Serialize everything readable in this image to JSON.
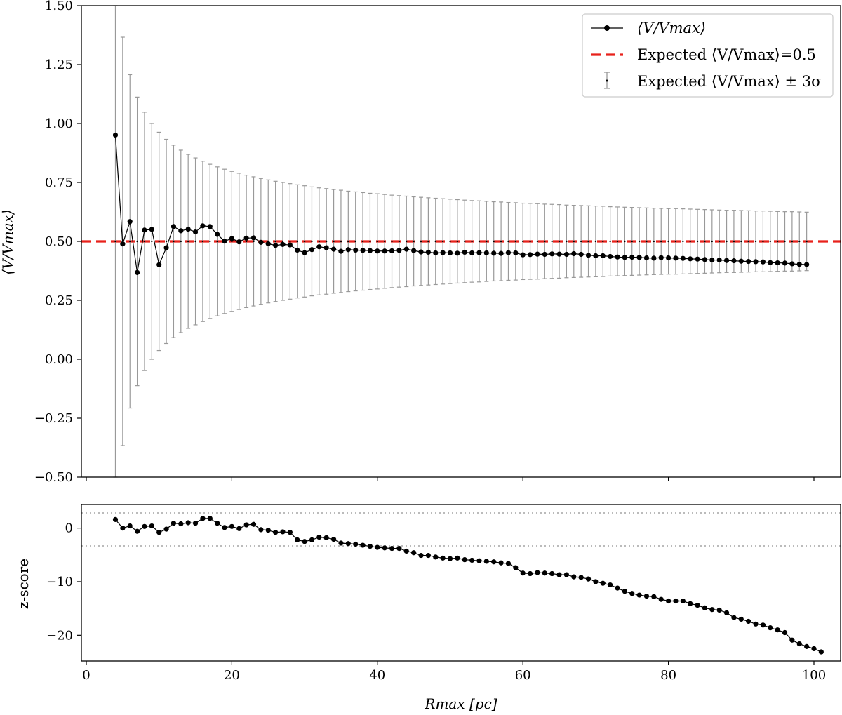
{
  "chart_data": [
    {
      "type": "line",
      "panel": "top",
      "title": "",
      "xlabel": "",
      "ylabel": "⟨V/Vmax⟩",
      "xlim": [
        -1,
        104
      ],
      "ylim": [
        -0.5,
        1.5
      ],
      "yticks": [
        -0.5,
        -0.25,
        0.0,
        0.25,
        0.5,
        0.75,
        1.0,
        1.25,
        1.5
      ],
      "ytick_labels": [
        "−0.50",
        "−0.25",
        "0.00",
        "0.25",
        "0.50",
        "0.75",
        "1.00",
        "1.25",
        "1.50"
      ],
      "xticks": [
        0,
        20,
        40,
        60,
        80,
        100
      ],
      "reference_line": {
        "y": 0.5,
        "color": "#e8211b",
        "style": "dashed"
      },
      "series": [
        {
          "name": "⟨V/Vmax⟩",
          "color": "#000000",
          "x_start": 4,
          "x_step": 1,
          "values": [
            0.951,
            0.489,
            0.584,
            0.368,
            0.548,
            0.551,
            0.401,
            0.473,
            0.563,
            0.545,
            0.552,
            0.54,
            0.566,
            0.563,
            0.53,
            0.501,
            0.512,
            0.498,
            0.514,
            0.515,
            0.496,
            0.49,
            0.483,
            0.487,
            0.485,
            0.463,
            0.452,
            0.465,
            0.477,
            0.473,
            0.467,
            0.458,
            0.465,
            0.463,
            0.462,
            0.461,
            0.459,
            0.459,
            0.46,
            0.462,
            0.467,
            0.461,
            0.455,
            0.454,
            0.451,
            0.452,
            0.451,
            0.45,
            0.454,
            0.451,
            0.452,
            0.451,
            0.45,
            0.449,
            0.452,
            0.451,
            0.443,
            0.444,
            0.446,
            0.445,
            0.447,
            0.446,
            0.445,
            0.448,
            0.445,
            0.441,
            0.439,
            0.439,
            0.436,
            0.434,
            0.432,
            0.433,
            0.432,
            0.43,
            0.429,
            0.431,
            0.43,
            0.429,
            0.428,
            0.426,
            0.425,
            0.423,
            0.421,
            0.421,
            0.419,
            0.418,
            0.416,
            0.415,
            0.414,
            0.413,
            0.41,
            0.409,
            0.408,
            0.405,
            0.403,
            0.402
          ]
        },
        {
          "name": "Expected ⟨V/Vmax⟩=0.5",
          "color": "#e8211b",
          "values": [
            0.5
          ]
        },
        {
          "name": "Expected ⟨V/Vmax⟩ ± 3σ",
          "color": "#999999",
          "center": 0.5,
          "x_start": 4,
          "x_step": 1,
          "halfwidth": [
            1.0,
            0.866,
            0.707,
            0.612,
            0.548,
            0.5,
            0.463,
            0.433,
            0.408,
            0.387,
            0.369,
            0.354,
            0.34,
            0.327,
            0.316,
            0.306,
            0.297,
            0.289,
            0.281,
            0.274,
            0.267,
            0.261,
            0.255,
            0.25,
            0.245,
            0.24,
            0.236,
            0.231,
            0.227,
            0.224,
            0.22,
            0.217,
            0.213,
            0.21,
            0.207,
            0.204,
            0.202,
            0.199,
            0.196,
            0.194,
            0.192,
            0.189,
            0.187,
            0.185,
            0.183,
            0.181,
            0.179,
            0.177,
            0.175,
            0.173,
            0.172,
            0.17,
            0.168,
            0.167,
            0.165,
            0.164,
            0.162,
            0.161,
            0.16,
            0.158,
            0.157,
            0.156,
            0.154,
            0.153,
            0.152,
            0.151,
            0.15,
            0.149,
            0.147,
            0.146,
            0.145,
            0.144,
            0.143,
            0.142,
            0.141,
            0.14,
            0.139,
            0.139,
            0.138,
            0.137,
            0.136,
            0.135,
            0.134,
            0.133,
            0.132,
            0.132,
            0.131,
            0.13,
            0.129,
            0.129,
            0.128,
            0.127,
            0.126,
            0.126,
            0.125,
            0.124
          ]
        }
      ],
      "legend": {
        "placement": "top-right",
        "entries": [
          "⟨V/Vmax⟩",
          "Expected ⟨V/Vmax⟩=0.5",
          "Expected ⟨V/Vmax⟩ ± 3σ"
        ]
      }
    },
    {
      "type": "line",
      "panel": "bottom",
      "title": "",
      "xlabel": "Rmax [pc]",
      "ylabel": "z-score",
      "xlim": [
        -1,
        104
      ],
      "ylim": [
        -24.8,
        4.4
      ],
      "yticks": [
        0,
        -10,
        -20
      ],
      "ytick_labels": [
        "0",
        "−10",
        "−20"
      ],
      "xticks": [
        0,
        20,
        40,
        60,
        80,
        100
      ],
      "xtick_labels": [
        "0",
        "20",
        "40",
        "60",
        "80",
        "100"
      ],
      "reference_lines": [
        {
          "y": 3,
          "color": "#bbbbbb",
          "style": "dotted"
        },
        {
          "y": -3,
          "color": "#bbbbbb",
          "style": "dotted"
        }
      ],
      "series": [
        {
          "name": "z-score",
          "color": "#000000",
          "x_start": 4,
          "x_step": 1,
          "values": [
            1.6,
            0.0,
            0.4,
            -0.6,
            0.3,
            0.4,
            -0.8,
            -0.2,
            0.9,
            0.8,
            1.0,
            0.9,
            1.8,
            1.8,
            0.9,
            0.1,
            0.3,
            -0.1,
            0.6,
            0.7,
            -0.3,
            -0.4,
            -0.8,
            -0.7,
            -0.8,
            -2.2,
            -2.5,
            -2.2,
            -1.7,
            -1.8,
            -2.1,
            -2.8,
            -2.9,
            -3.0,
            -3.2,
            -3.4,
            -3.6,
            -3.7,
            -3.8,
            -3.8,
            -4.3,
            -4.6,
            -5.1,
            -5.1,
            -5.4,
            -5.6,
            -5.7,
            -5.6,
            -5.9,
            -6.0,
            -6.1,
            -6.2,
            -6.3,
            -6.5,
            -6.6,
            -7.4,
            -8.4,
            -8.5,
            -8.3,
            -8.4,
            -8.5,
            -8.7,
            -8.7,
            -9.1,
            -9.2,
            -9.5,
            -10.0,
            -10.3,
            -10.6,
            -11.2,
            -11.8,
            -12.2,
            -12.5,
            -12.7,
            -12.8,
            -13.3,
            -13.6,
            -13.6,
            -13.6,
            -14.1,
            -14.4,
            -14.9,
            -15.2,
            -15.3,
            -15.8,
            -16.7,
            -17.0,
            -17.4,
            -17.9,
            -18.1,
            -18.6,
            -19.0,
            -19.5,
            -20.9,
            -21.6,
            -22.1,
            -22.5,
            -23.1
          ]
        }
      ]
    }
  ]
}
